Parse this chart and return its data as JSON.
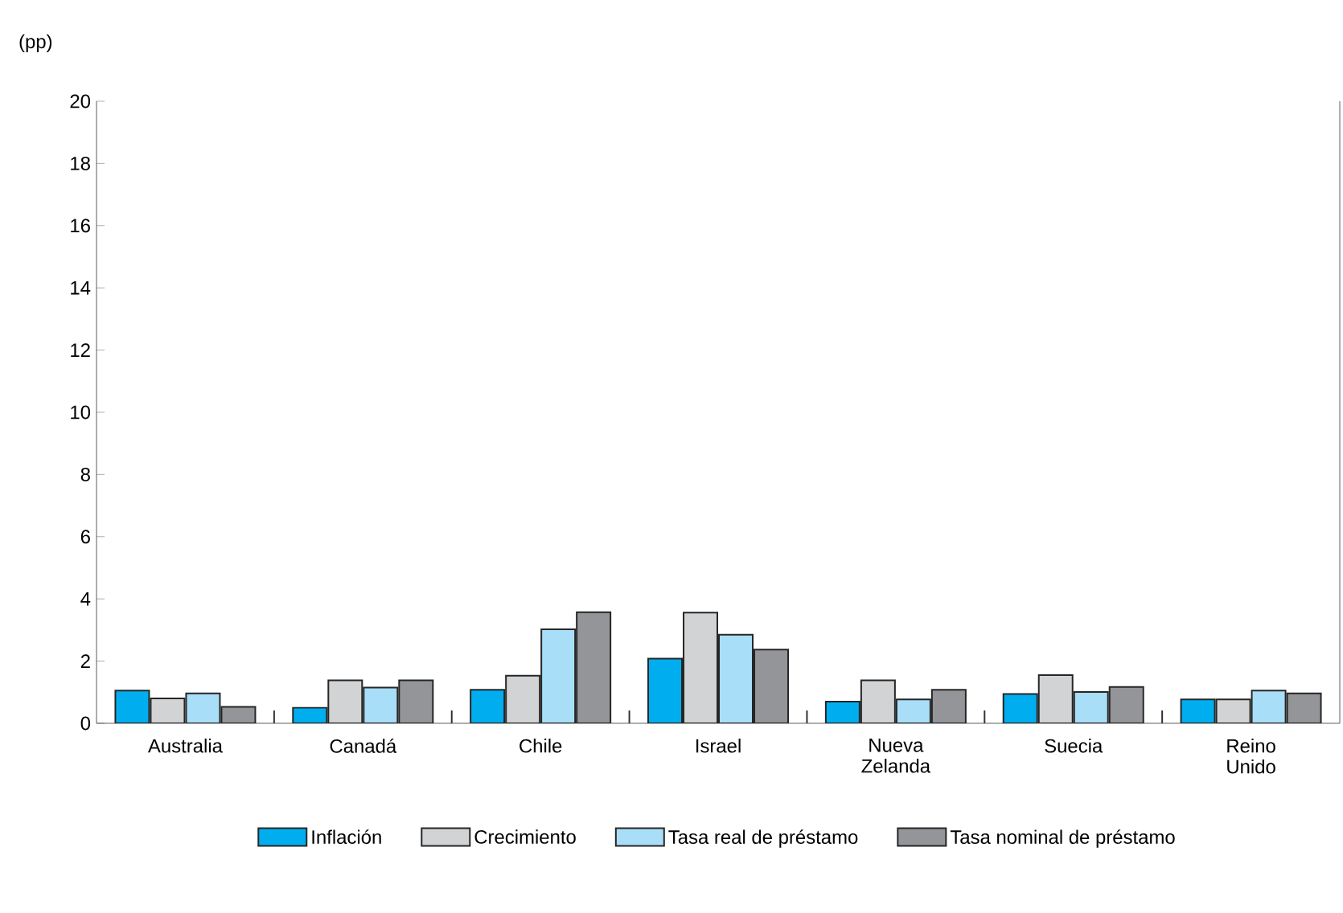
{
  "chart_data": {
    "type": "bar",
    "ylabel": "(pp)",
    "categories": [
      "Australia",
      "Canadá",
      "Chile",
      "Israel",
      "Nueva Zelanda",
      "Suecia",
      "Reino Unido"
    ],
    "series": [
      {
        "name": "Inflación",
        "color": "#00aeef",
        "values": [
          1.05,
          0.5,
          1.08,
          2.08,
          0.7,
          0.94,
          0.77
        ]
      },
      {
        "name": "Crecimiento",
        "color": "#d1d3d4",
        "values": [
          0.8,
          1.38,
          1.53,
          3.56,
          1.38,
          1.55,
          0.77
        ]
      },
      {
        "name": "Tasa real de préstamo",
        "color": "#a8def8",
        "values": [
          0.96,
          1.15,
          3.02,
          2.85,
          0.77,
          1.01,
          1.05
        ]
      },
      {
        "name": "Tasa nominal de préstamo",
        "color": "#939598",
        "values": [
          0.53,
          1.38,
          3.57,
          2.37,
          1.08,
          1.17,
          0.96
        ]
      }
    ],
    "ylim": [
      0,
      20
    ],
    "yticks": [
      0,
      2,
      4,
      6,
      8,
      10,
      12,
      14,
      16,
      18,
      20
    ],
    "grid": false,
    "legend": "bottom"
  }
}
